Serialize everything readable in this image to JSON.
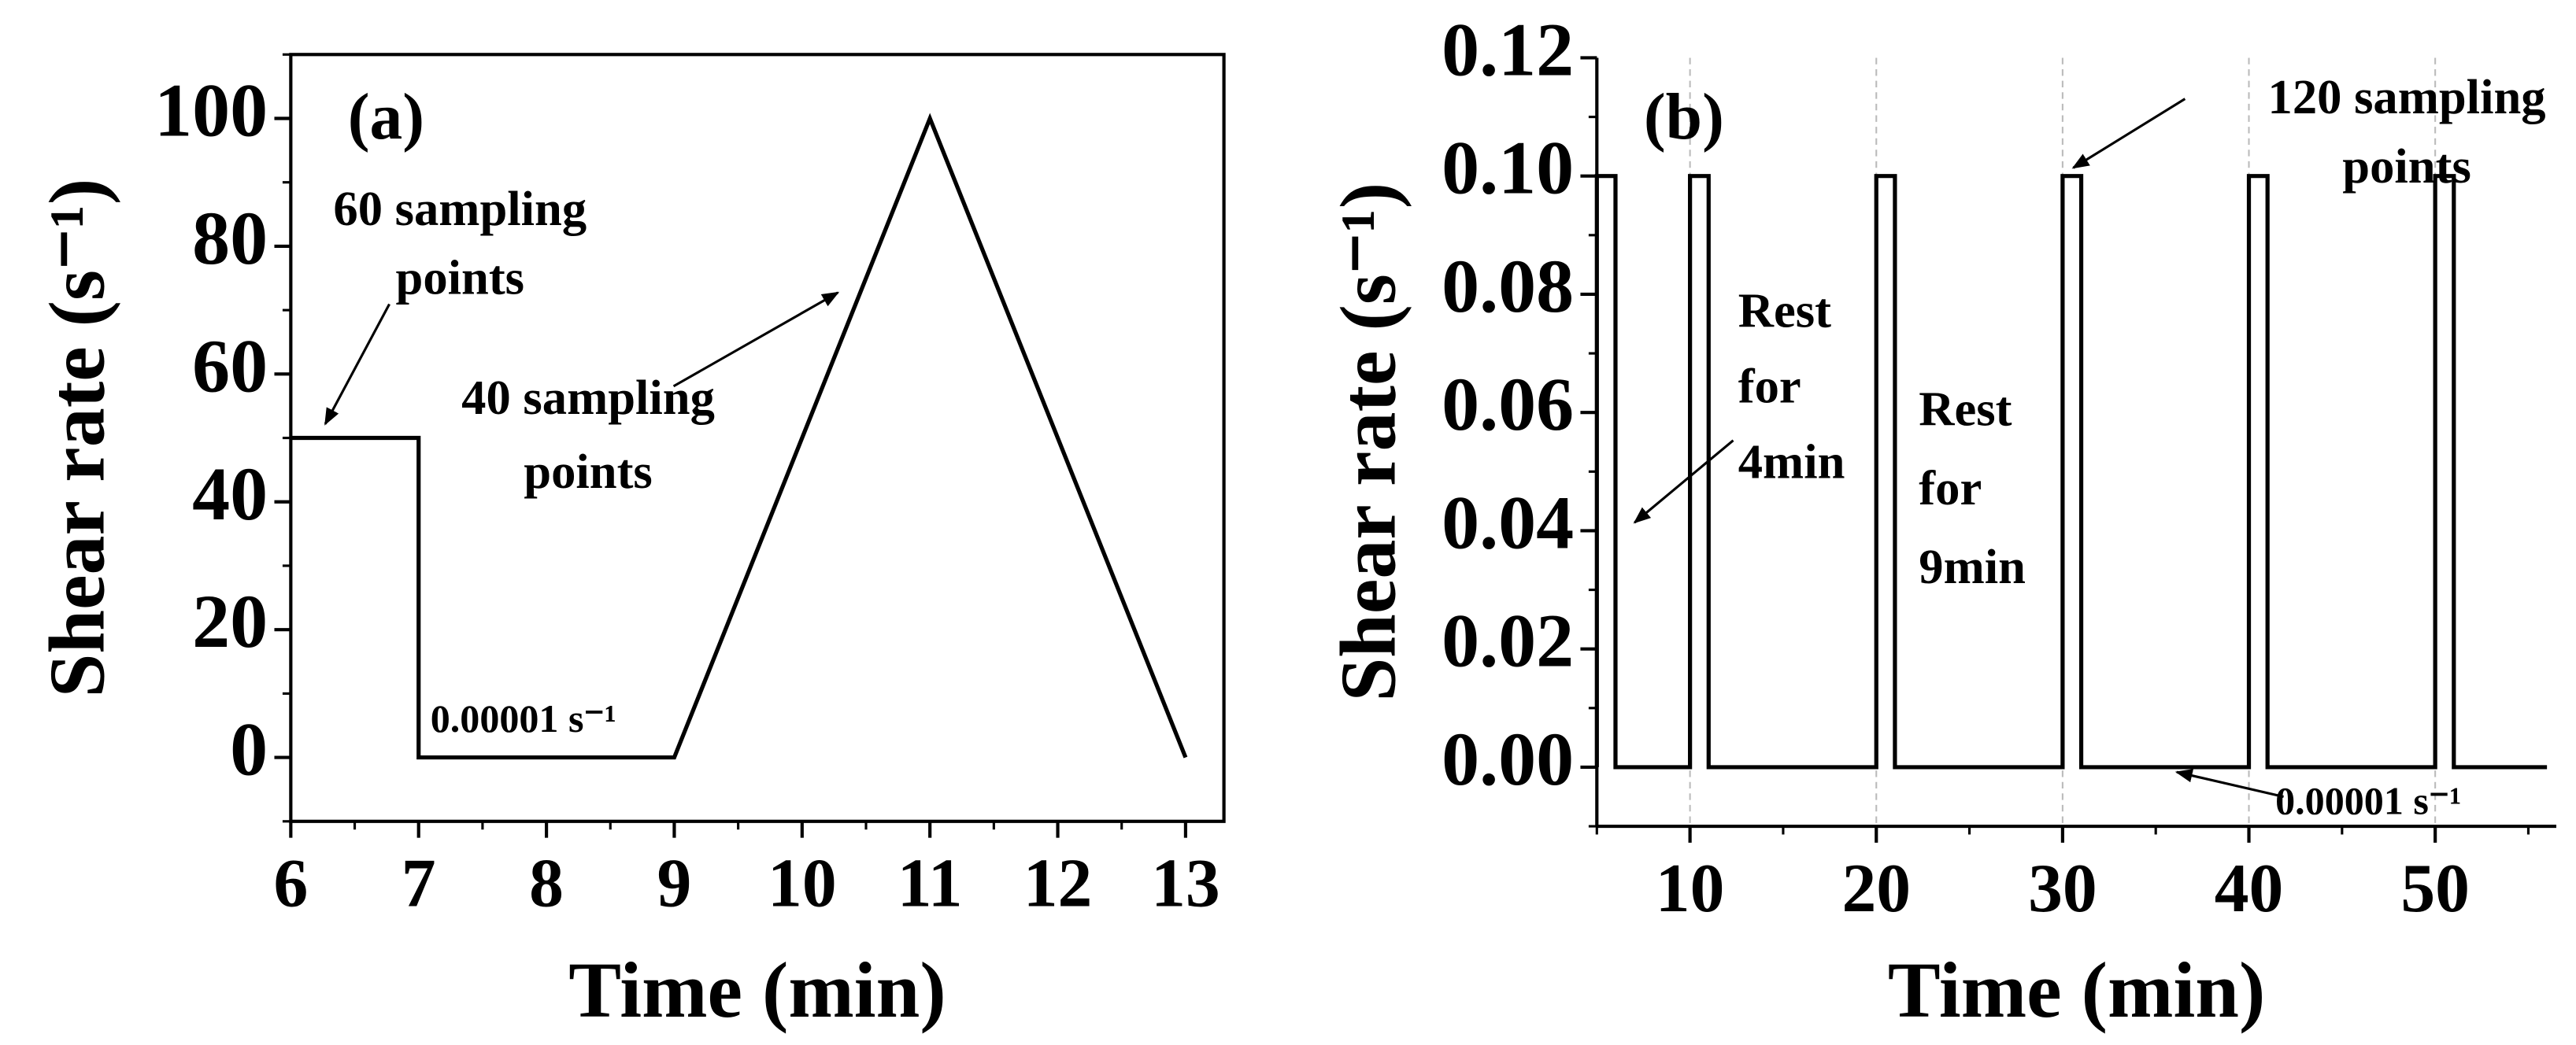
{
  "chart_data": [
    {
      "type": "line",
      "panel_label": "(a)",
      "x_label": "Time (min)",
      "y_label": "Shear rate (s⁻¹)",
      "x": [
        6,
        7,
        7,
        9,
        11,
        13
      ],
      "values": [
        50,
        50,
        0,
        0,
        100,
        0
      ],
      "color": "#000000",
      "xlim": [
        6,
        13.3
      ],
      "ylim": [
        -10,
        110
      ],
      "xticks": [
        6,
        7,
        8,
        9,
        10,
        11,
        12,
        13
      ],
      "yticks": [
        0,
        20,
        40,
        60,
        80,
        100
      ],
      "annotations": [
        {
          "lines": [
            "60 sampling",
            "points"
          ]
        },
        {
          "lines": [
            "40 sampling",
            "points"
          ]
        },
        {
          "lines": [
            "0.00001 s⁻¹"
          ]
        }
      ]
    },
    {
      "type": "line",
      "panel_label": "(b)",
      "x_label": "Time (min)",
      "y_label": "Shear rate (s⁻¹)",
      "x": [
        5,
        5,
        6,
        6,
        10,
        10,
        11,
        11,
        20,
        20,
        21,
        21,
        30,
        30,
        31,
        31,
        40,
        40,
        41,
        41,
        50,
        50,
        51,
        51,
        56
      ],
      "values": [
        0,
        0.1,
        0.1,
        0,
        0,
        0.1,
        0.1,
        0,
        0,
        0.1,
        0.1,
        0,
        0,
        0.1,
        0.1,
        0,
        0,
        0.1,
        0.1,
        0,
        0,
        0.1,
        0.1,
        0,
        0
      ],
      "color": "#000000",
      "xlim": [
        5,
        56.5
      ],
      "ylim": [
        -0.01,
        0.12
      ],
      "grid_x": true,
      "xticks": [
        10,
        20,
        30,
        40,
        50
      ],
      "yticks": [
        {
          "value": 0,
          "label": "0.00"
        },
        {
          "value": 0.02,
          "label": "0.02"
        },
        {
          "value": 0.04,
          "label": "0.04"
        },
        {
          "value": 0.06,
          "label": "0.06"
        },
        {
          "value": 0.08,
          "label": "0.08"
        },
        {
          "value": 0.1,
          "label": "0.10"
        },
        {
          "value": 0.12,
          "label": "0.12"
        }
      ],
      "annotations": [
        {
          "lines": [
            "120 sampling",
            "points"
          ]
        },
        {
          "lines": [
            "Rest",
            "for",
            "4min"
          ]
        },
        {
          "lines": [
            "Rest",
            "for",
            "9min"
          ]
        },
        {
          "lines": [
            "0.00001 s⁻¹"
          ]
        }
      ]
    }
  ]
}
